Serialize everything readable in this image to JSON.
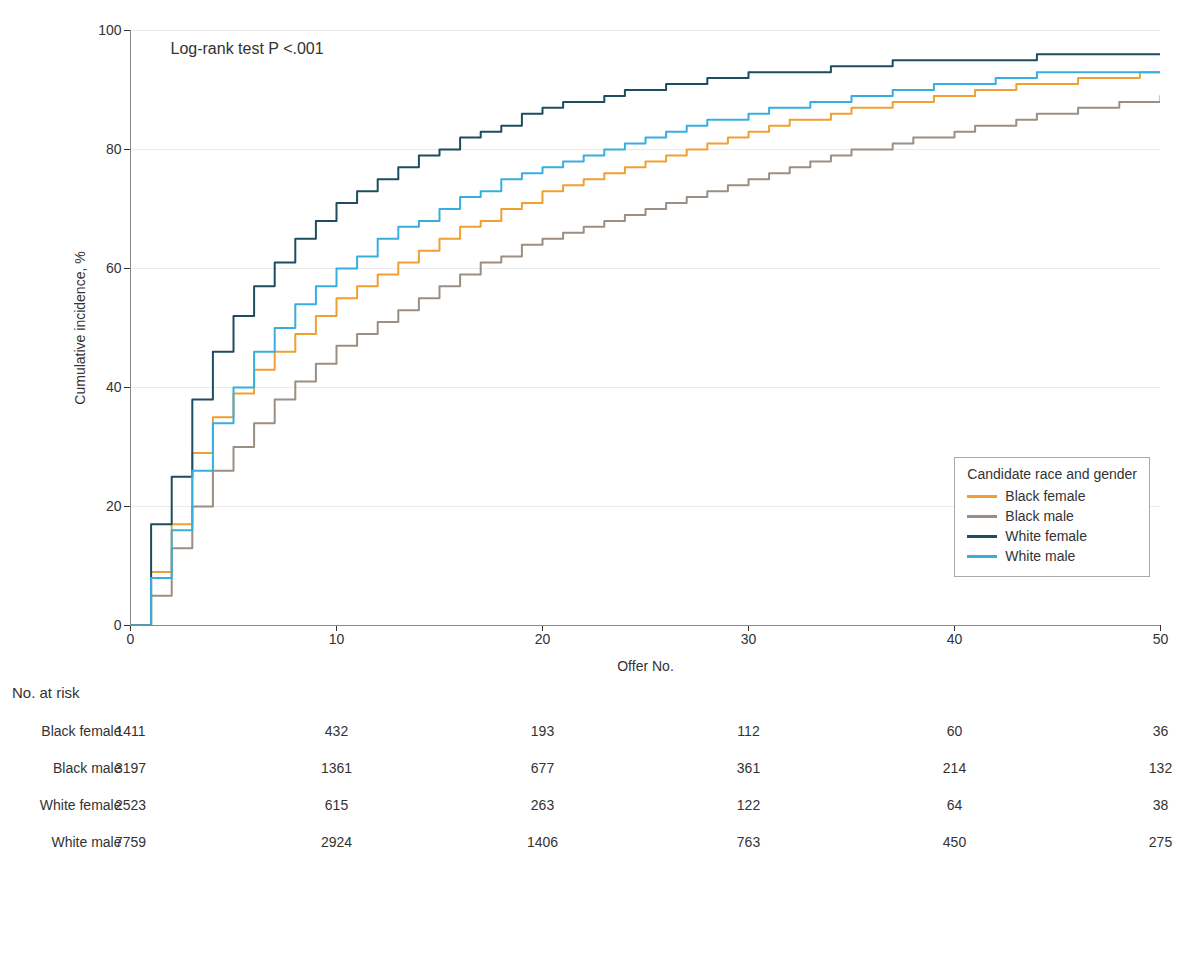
{
  "chart_data": {
    "type": "step",
    "xlabel": "Offer No.",
    "ylabel": "Cumulative incidence, %",
    "annotation": "Log-rank test P <.001",
    "x": [
      0,
      1,
      2,
      3,
      4,
      5,
      6,
      7,
      8,
      9,
      10,
      11,
      12,
      13,
      14,
      15,
      16,
      17,
      18,
      19,
      20,
      21,
      22,
      23,
      24,
      25,
      26,
      27,
      28,
      29,
      30,
      31,
      32,
      33,
      34,
      35,
      36,
      37,
      38,
      39,
      40,
      41,
      42,
      43,
      44,
      45,
      46,
      47,
      48,
      49,
      50
    ],
    "series": [
      {
        "name": "Black female",
        "color": "#F0A030",
        "values": [
          0,
          9,
          17,
          29,
          35,
          39,
          43,
          46,
          49,
          52,
          55,
          57,
          59,
          61,
          63,
          65,
          67,
          68,
          70,
          71,
          73,
          74,
          75,
          76,
          77,
          78,
          79,
          80,
          81,
          82,
          83,
          84,
          85,
          85,
          86,
          87,
          87,
          88,
          88,
          89,
          89,
          90,
          90,
          91,
          91,
          91,
          92,
          92,
          92,
          93,
          93
        ]
      },
      {
        "name": "Black male",
        "color": "#9B8E82",
        "values": [
          0,
          5,
          13,
          20,
          26,
          30,
          34,
          38,
          41,
          44,
          47,
          49,
          51,
          53,
          55,
          57,
          59,
          61,
          62,
          64,
          65,
          66,
          67,
          68,
          69,
          70,
          71,
          72,
          73,
          74,
          75,
          76,
          77,
          78,
          79,
          80,
          80,
          81,
          82,
          82,
          83,
          84,
          84,
          85,
          86,
          86,
          87,
          87,
          88,
          88,
          89
        ]
      },
      {
        "name": "White female",
        "color": "#1D4E5F",
        "values": [
          0,
          17,
          25,
          38,
          46,
          52,
          57,
          61,
          65,
          68,
          71,
          73,
          75,
          77,
          79,
          80,
          82,
          83,
          84,
          86,
          87,
          88,
          88,
          89,
          90,
          90,
          91,
          91,
          92,
          92,
          93,
          93,
          93,
          93,
          94,
          94,
          94,
          95,
          95,
          95,
          95,
          95,
          95,
          95,
          96,
          96,
          96,
          96,
          96,
          96,
          96
        ]
      },
      {
        "name": "White male",
        "color": "#38AEE0",
        "values": [
          0,
          8,
          16,
          26,
          34,
          40,
          46,
          50,
          54,
          57,
          60,
          62,
          65,
          67,
          68,
          70,
          72,
          73,
          75,
          76,
          77,
          78,
          79,
          80,
          81,
          82,
          83,
          84,
          85,
          85,
          86,
          87,
          87,
          88,
          88,
          89,
          89,
          90,
          90,
          91,
          91,
          91,
          92,
          92,
          93,
          93,
          93,
          93,
          93,
          93,
          93
        ]
      }
    ],
    "xlim": [
      0,
      50
    ],
    "ylim": [
      0,
      100
    ],
    "xticks": [
      0,
      10,
      20,
      30,
      40,
      50
    ],
    "yticks": [
      0,
      20,
      40,
      60,
      80,
      100
    ],
    "grid": "y",
    "legend": "lower right",
    "legend_title": "Candidate race and gender",
    "risk_table": {
      "header": "No. at risk",
      "x": [
        0,
        10,
        20,
        30,
        40,
        50
      ],
      "rows": [
        {
          "name": "Black female",
          "values": [
            1411,
            432,
            193,
            112,
            60,
            36
          ]
        },
        {
          "name": "Black male",
          "values": [
            3197,
            1361,
            677,
            361,
            214,
            132
          ]
        },
        {
          "name": "White female",
          "values": [
            2523,
            615,
            263,
            122,
            64,
            38
          ]
        },
        {
          "name": "White male",
          "values": [
            7759,
            2924,
            1406,
            763,
            450,
            275
          ]
        }
      ]
    }
  }
}
